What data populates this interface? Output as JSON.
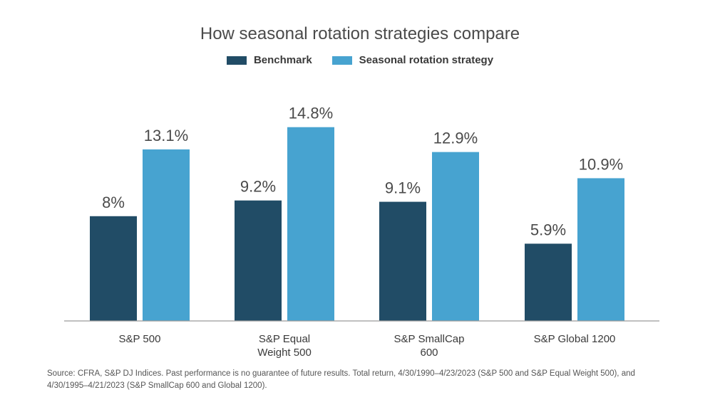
{
  "chart_data": {
    "type": "bar",
    "title": "How seasonal rotation strategies compare",
    "categories": [
      [
        "S&P 500"
      ],
      [
        "S&P Equal",
        "Weight 500"
      ],
      [
        "S&P SmallCap",
        "600"
      ],
      [
        "S&P Global 1200"
      ]
    ],
    "series": [
      {
        "name": "Benchmark",
        "color": "#214c66",
        "values": [
          8,
          9.2,
          9.1,
          5.9
        ],
        "labels": [
          "8%",
          "9.2%",
          "9.1%",
          "5.9%"
        ]
      },
      {
        "name": "Seasonal rotation strategy",
        "color": "#47a3d0",
        "values": [
          13.1,
          14.8,
          12.9,
          10.9
        ],
        "labels": [
          "13.1%",
          "14.8%",
          "12.9%",
          "10.9%"
        ]
      }
    ],
    "ylim": [
      0,
      16
    ],
    "grid": false,
    "legend_position": "top-center",
    "source": "Source: CFRA, S&P DJ Indices. Past performance is no guarantee of future results. Total return, 4/30/1990–4/23/2023 (S&P 500 and S&P Equal Weight 500), and 4/30/1995–4/21/2023 (S&P SmallCap 600 and Global 1200)."
  }
}
